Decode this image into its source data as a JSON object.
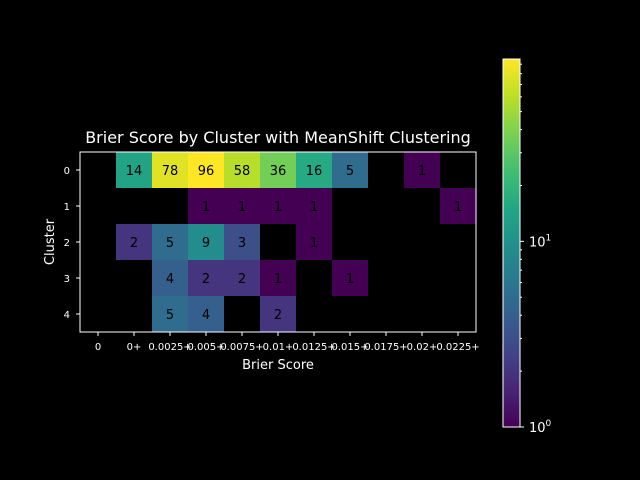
{
  "chart_data": {
    "type": "heatmap",
    "title": "Brier Score by Cluster with MeanShift Clustering",
    "xlabel": "Brier Score",
    "ylabel": "Cluster",
    "x_categories": [
      "0",
      "0+",
      "0.0025+",
      "0.005+",
      "0.0075+",
      "0.01+",
      "0.0125+",
      "0.015+",
      "0.0175+",
      "0.02+",
      "0.0225+"
    ],
    "y_categories": [
      "0",
      "1",
      "2",
      "3",
      "4"
    ],
    "values": [
      [
        0,
        14,
        78,
        96,
        58,
        36,
        16,
        5,
        0,
        1,
        0
      ],
      [
        0,
        0,
        0,
        1,
        1,
        1,
        1,
        0,
        0,
        0,
        1
      ],
      [
        0,
        2,
        5,
        9,
        3,
        0,
        1,
        0,
        0,
        0,
        0
      ],
      [
        0,
        0,
        4,
        2,
        2,
        1,
        0,
        1,
        0,
        0,
        0
      ],
      [
        0,
        0,
        5,
        4,
        0,
        2,
        0,
        0,
        0,
        0,
        0
      ]
    ],
    "zero_cells": "blank",
    "color_scale": "log",
    "colormap": "viridis",
    "colorbar": {
      "range": [
        1,
        96
      ],
      "major_ticks": [
        {
          "value": 1,
          "base": "10",
          "exp": "0"
        },
        {
          "value": 10,
          "base": "10",
          "exp": "1"
        }
      ]
    },
    "grid": false,
    "background": "#000000"
  }
}
